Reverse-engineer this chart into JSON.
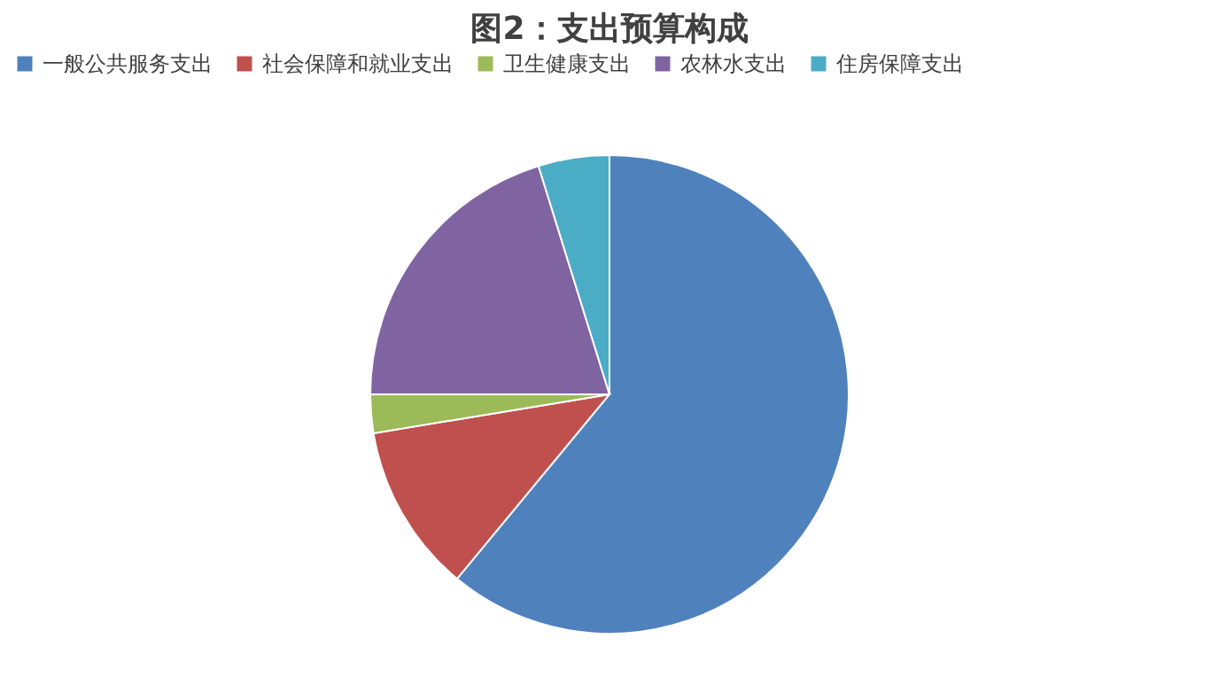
{
  "chart_data": {
    "type": "pie",
    "title": "图2：支出预算构成",
    "categories": [
      "一般公共服务支出",
      "社会保障和就业支出",
      "卫生健康支出",
      "农林水支出",
      "住房保障支出"
    ],
    "values": [
      61,
      11.4,
      2.6,
      20.2,
      4.8
    ],
    "colors": [
      "#4f81bd",
      "#c0504d",
      "#9bbb59",
      "#8064a2",
      "#4bacc6"
    ],
    "legend": "top"
  }
}
